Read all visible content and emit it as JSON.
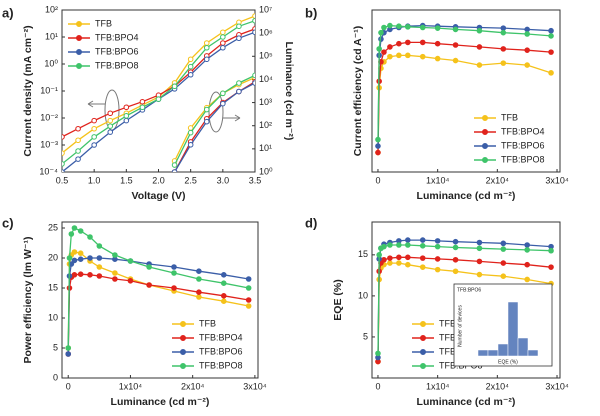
{
  "chart_data": [
    {
      "type": "line",
      "panel_label": "a)",
      "xlabel": "Voltage (V)",
      "ylabel": "Current density (mA cm⁻²)",
      "y2label": "Luminance (cd m⁻²)",
      "x": [
        0.5,
        0.75,
        1,
        1.25,
        1.5,
        1.75,
        2,
        2.25,
        2.5,
        2.75,
        3,
        3.25,
        3.5
      ],
      "xlim": [
        0.5,
        3.5
      ],
      "xticks": [
        0.5,
        {
          "value": 1,
          "label": "1.0"
        },
        1.5,
        {
          "value": 2,
          "label": "2.0"
        },
        2.5,
        {
          "value": 3,
          "label": "3.0"
        },
        3.5
      ],
      "ylim": [
        0.0001,
        100
      ],
      "yscale": "log",
      "yticks": [
        {
          "value": 0.0001,
          "label": "10⁻⁴"
        },
        {
          "value": 0.001,
          "label": "10⁻³"
        },
        {
          "value": 0.01,
          "label": "10⁻²"
        },
        {
          "value": 0.1,
          "label": "10⁻¹"
        },
        {
          "value": 1,
          "label": "10⁰"
        },
        {
          "value": 10,
          "label": "10¹"
        },
        {
          "value": 100,
          "label": "10²"
        }
      ],
      "y2lim": [
        1,
        10000000
      ],
      "y2scale": "log",
      "y2ticks": [
        {
          "value": 1,
          "label": "10⁰"
        },
        {
          "value": 10,
          "label": "10¹"
        },
        {
          "value": 100,
          "label": "10²"
        },
        {
          "value": 1000,
          "label": "10³"
        },
        {
          "value": 10000,
          "label": "10⁴"
        },
        {
          "value": 100000,
          "label": "10⁵"
        },
        {
          "value": 1000000,
          "label": "10⁶"
        },
        {
          "value": 10000000,
          "label": "10⁷"
        }
      ],
      "legend": "upper left",
      "series": [
        {
          "name": "TFB",
          "color": "#f5c21b",
          "values": [
            0.0005,
            0.0015,
            0.004,
            0.008,
            0.015,
            0.03,
            0.06,
            0.2,
            1.5,
            6,
            15,
            35,
            60
          ]
        },
        {
          "name": "TFB:BPO4",
          "color": "#e0231c",
          "values": [
            0.002,
            0.004,
            0.008,
            0.015,
            0.025,
            0.04,
            0.07,
            0.15,
            0.5,
            2,
            6,
            12,
            20
          ]
        },
        {
          "name": "TFB:BPO6",
          "color": "#3b5ea8",
          "values": [
            0.0001,
            0.0003,
            0.001,
            0.003,
            0.008,
            0.02,
            0.05,
            0.12,
            0.4,
            1.5,
            4,
            9,
            15
          ]
        },
        {
          "name": "TFB:BPO8",
          "color": "#3fc46a",
          "values": [
            0.0002,
            0.0006,
            0.002,
            0.005,
            0.012,
            0.025,
            0.05,
            0.15,
            0.8,
            4,
            10,
            25,
            40
          ]
        },
        {
          "color": "#f5c21b",
          "axis": "y2",
          "values": [
            null,
            null,
            null,
            null,
            null,
            null,
            null,
            3,
            80,
            600,
            2500,
            6000,
            12000
          ]
        },
        {
          "color": "#e0231c",
          "axis": "y2",
          "values": [
            null,
            null,
            null,
            null,
            null,
            null,
            null,
            1,
            20,
            200,
            1000,
            3000,
            8000
          ]
        },
        {
          "color": "#3b5ea8",
          "axis": "y2",
          "values": [
            null,
            null,
            null,
            null,
            null,
            null,
            null,
            1,
            15,
            150,
            900,
            3000,
            7000
          ]
        },
        {
          "color": "#3fc46a",
          "axis": "y2",
          "values": [
            null,
            null,
            null,
            null,
            null,
            null,
            null,
            2,
            50,
            500,
            2500,
            7000,
            15000
          ]
        }
      ]
    },
    {
      "type": "line",
      "panel_label": "b)",
      "xlabel": "Luminance (cd m⁻²)",
      "ylabel": "Current efficiency (cd A⁻¹)",
      "x": [
        0,
        200,
        500,
        1000,
        2000,
        3500,
        5000,
        7500,
        10000,
        13000,
        17000,
        21000,
        25000,
        29000
      ],
      "xlim": [
        -1000,
        30500
      ],
      "xticks": [
        0,
        {
          "value": 10000,
          "label": "1x10⁴"
        },
        {
          "value": 20000,
          "label": "2x10⁴"
        },
        {
          "value": 30000,
          "label": "3x10⁴"
        }
      ],
      "ylim": [
        0,
        25
      ],
      "legend": "lower right",
      "series": [
        {
          "name": "TFB",
          "color": "#f5c21b",
          "values": [
            3,
            13,
            16,
            17,
            17.8,
            18,
            18,
            17.8,
            17.5,
            17.2,
            16.5,
            16.8,
            16.5,
            15.3
          ]
        },
        {
          "name": "TFB:BPO4",
          "color": "#e0231c",
          "values": [
            3,
            14,
            17,
            18.5,
            19.3,
            19.8,
            20,
            20,
            19.8,
            19.6,
            19.3,
            19,
            18.8,
            18.5
          ]
        },
        {
          "name": "TFB:BPO6",
          "color": "#3b5ea8",
          "values": [
            4,
            18,
            20.5,
            21.5,
            22,
            22.3,
            22.5,
            22.6,
            22.5,
            22.4,
            22.3,
            22.2,
            22,
            21.8
          ]
        },
        {
          "name": "TFB:BPO8",
          "color": "#3fc46a",
          "values": [
            5,
            19,
            21.5,
            22.3,
            22.6,
            22.5,
            22.4,
            22.3,
            22.2,
            22,
            21.8,
            21.5,
            21.3,
            21
          ]
        }
      ]
    },
    {
      "type": "line",
      "panel_label": "c)",
      "xlabel": "Luminance (cd m⁻²)",
      "ylabel": "Power efficiency (lm W⁻¹)",
      "x": [
        0,
        200,
        500,
        1000,
        2000,
        3500,
        5000,
        7500,
        10000,
        13000,
        17000,
        21000,
        25000,
        29000
      ],
      "xlim": [
        -1000,
        30500
      ],
      "xticks": [
        0,
        {
          "value": 10000,
          "label": "1x10⁴"
        },
        {
          "value": 20000,
          "label": "2x10⁴"
        },
        {
          "value": 30000,
          "label": "3x10⁴"
        }
      ],
      "ylim": [
        0,
        26
      ],
      "yticks": [
        0,
        5,
        10,
        15,
        20,
        25
      ],
      "legend": "lower right",
      "series": [
        {
          "name": "TFB",
          "color": "#f5c21b",
          "values": [
            5,
            19,
            20.5,
            21,
            20.8,
            19.5,
            18.5,
            17.5,
            16.5,
            15.5,
            14.5,
            13.5,
            12.8,
            12
          ]
        },
        {
          "name": "TFB:BPO4",
          "color": "#e0231c",
          "values": [
            4,
            15,
            16.8,
            17.2,
            17.3,
            17.2,
            17,
            16.5,
            16.2,
            15.5,
            15,
            14.3,
            13.7,
            13
          ]
        },
        {
          "name": "TFB:BPO6",
          "color": "#3b5ea8",
          "values": [
            4,
            17,
            19,
            19.6,
            19.8,
            20,
            20,
            19.8,
            19.5,
            19,
            18.5,
            17.8,
            17.2,
            16.5
          ]
        },
        {
          "name": "TFB:BPO8",
          "color": "#3fc46a",
          "values": [
            5,
            20,
            24,
            25,
            24.5,
            23.5,
            22,
            20.5,
            19.5,
            18.5,
            17.5,
            16.5,
            15.8,
            15
          ]
        }
      ]
    },
    {
      "type": "line",
      "panel_label": "d)",
      "xlabel": "Luminance (cd m⁻²)",
      "ylabel": "EQE (%)",
      "x": [
        0,
        200,
        500,
        1000,
        2000,
        3500,
        5000,
        7500,
        10000,
        13000,
        17000,
        21000,
        25000,
        29000
      ],
      "xlim": [
        -1000,
        30500
      ],
      "xticks": [
        0,
        {
          "value": 10000,
          "label": "1x10⁴"
        },
        {
          "value": 20000,
          "label": "2x10⁴"
        },
        {
          "value": 30000,
          "label": "3x10⁴"
        }
      ],
      "ylim": [
        0,
        19
      ],
      "yticks": [
        5,
        10,
        15
      ],
      "legend": "lower left",
      "series": [
        {
          "name": "TFB",
          "color": "#f5c21b",
          "values": [
            2,
            12,
            13.4,
            13.8,
            14,
            14,
            13.8,
            13.5,
            13.2,
            13,
            12.6,
            12.4,
            12,
            11.5
          ]
        },
        {
          "name": "TFB:BPO4",
          "color": "#e0231c",
          "values": [
            2,
            13,
            14,
            14.4,
            14.6,
            14.7,
            14.7,
            14.6,
            14.5,
            14.4,
            14.2,
            14,
            13.8,
            13.5
          ]
        },
        {
          "name": "TFB:BPO6",
          "color": "#3b5ea8",
          "values": [
            2.5,
            14.5,
            15.8,
            16.3,
            16.5,
            16.7,
            16.8,
            16.8,
            16.7,
            16.6,
            16.5,
            16.4,
            16.2,
            16
          ]
        },
        {
          "name": "TFB:BPO8",
          "color": "#3fc46a",
          "values": [
            3,
            15,
            15.8,
            16,
            16.2,
            16.2,
            16.2,
            16.1,
            16,
            15.9,
            15.8,
            15.7,
            15.6,
            15.5
          ]
        }
      ],
      "inset": {
        "type": "histogram",
        "title": "TFB:BPO6",
        "xlabel": "EQE (%)",
        "ylabel": "Number of devices",
        "bins": [
          12,
          13,
          14,
          15,
          16,
          17,
          18
        ],
        "values": [
          1,
          1,
          2,
          9,
          3,
          1
        ],
        "color": "#4a6fb5",
        "xlim": [
          11,
          19
        ],
        "ylim": [
          0,
          10
        ]
      }
    }
  ]
}
